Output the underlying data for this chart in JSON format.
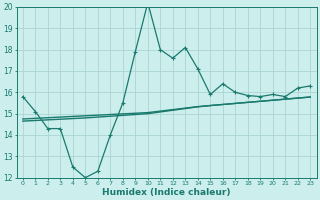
{
  "title": "",
  "xlabel": "Humidex (Indice chaleur)",
  "ylabel": "",
  "background_color": "#cceeed",
  "grid_color": "#aad4d2",
  "line_color": "#1a7a6e",
  "x_humidex": [
    0,
    1,
    2,
    3,
    4,
    5,
    6,
    7,
    8,
    9,
    10,
    11,
    12,
    13,
    14,
    15,
    16,
    17,
    18,
    19,
    20,
    21,
    22,
    23
  ],
  "y_curve1": [
    15.8,
    15.1,
    14.3,
    14.3,
    12.5,
    12.0,
    12.3,
    14.0,
    15.5,
    17.9,
    20.2,
    18.0,
    17.6,
    18.1,
    17.1,
    15.9,
    16.4,
    16.0,
    15.85,
    15.8,
    15.9,
    15.8,
    16.2,
    16.3
  ],
  "y_line1": [
    14.75,
    14.78,
    14.81,
    14.84,
    14.87,
    14.9,
    14.93,
    14.96,
    14.99,
    15.02,
    15.05,
    15.12,
    15.19,
    15.26,
    15.33,
    15.38,
    15.43,
    15.48,
    15.53,
    15.58,
    15.63,
    15.68,
    15.73,
    15.78
  ],
  "y_line2": [
    14.65,
    14.68,
    14.71,
    14.74,
    14.77,
    14.8,
    14.84,
    14.88,
    14.92,
    14.96,
    15.0,
    15.08,
    15.16,
    15.24,
    15.32,
    15.38,
    15.43,
    15.48,
    15.53,
    15.58,
    15.63,
    15.68,
    15.73,
    15.78
  ],
  "ylim": [
    12,
    20
  ],
  "xlim": [
    -0.5,
    23.5
  ],
  "yticks": [
    12,
    13,
    14,
    15,
    16,
    17,
    18,
    19,
    20
  ],
  "xticks": [
    0,
    1,
    2,
    3,
    4,
    5,
    6,
    7,
    8,
    9,
    10,
    11,
    12,
    13,
    14,
    15,
    16,
    17,
    18,
    19,
    20,
    21,
    22,
    23
  ]
}
